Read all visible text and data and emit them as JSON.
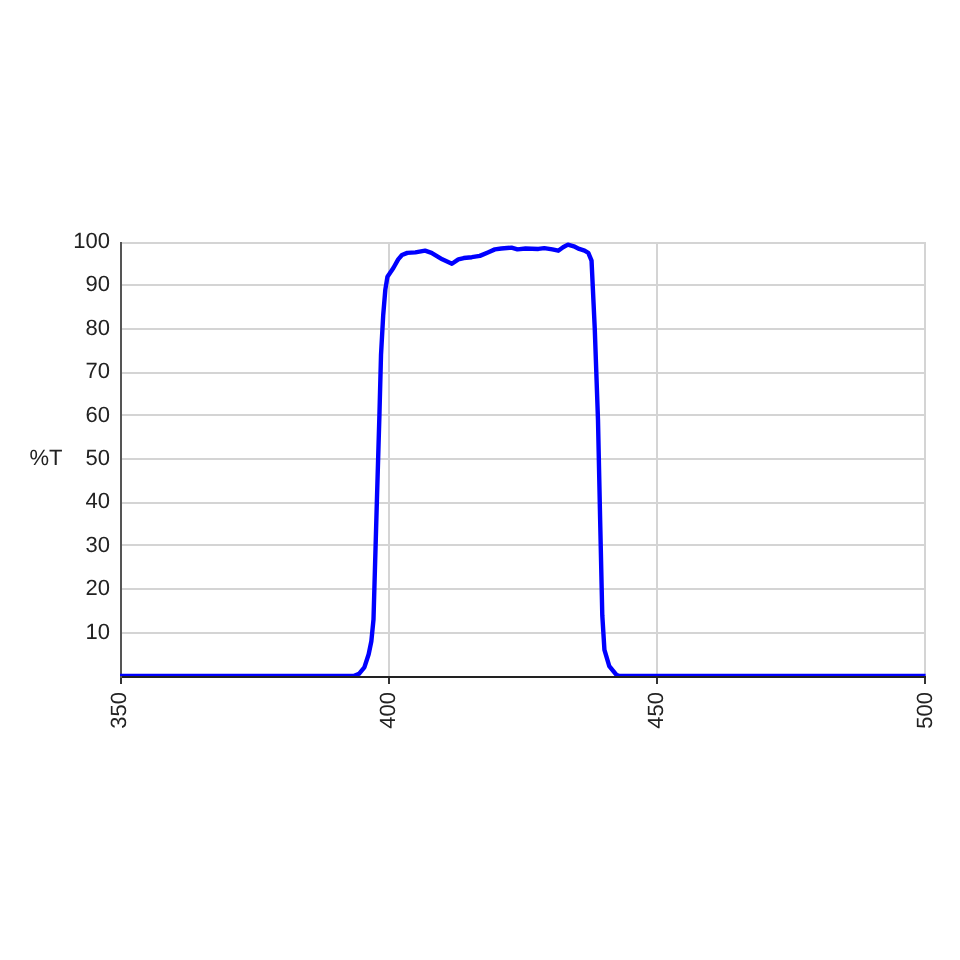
{
  "chart_data": {
    "type": "line",
    "ylabel": "%T",
    "x": [
      350,
      393.5,
      394.5,
      395.5,
      396.3,
      396.8,
      397.2,
      397.8,
      398.3,
      398.6,
      399,
      399.4,
      399.8,
      400.9,
      401.8,
      402.5,
      403.5,
      405,
      406.8,
      408,
      410,
      411.8,
      413,
      414,
      415.5,
      417,
      418.5,
      419.8,
      421,
      422.9,
      424,
      425.5,
      427.9,
      429,
      430.5,
      431.6,
      432.5,
      433.4,
      434.5,
      435.5,
      436.5,
      437.2,
      437.8,
      438.4,
      439,
      439.4,
      439.8,
      440.2,
      441.1,
      442.4,
      443,
      500
    ],
    "series": [
      {
        "color": "#0000ff",
        "values": [
          0,
          0,
          0.5,
          2,
          5,
          8,
          13,
          39,
          60,
          74,
          83,
          89,
          92,
          94,
          96,
          97,
          97.5,
          97.6,
          98,
          97.5,
          96,
          95,
          96,
          96.3,
          96.5,
          96.8,
          97.6,
          98.3,
          98.5,
          98.7,
          98.3,
          98.5,
          98.4,
          98.6,
          98.3,
          98,
          98.8,
          99.4,
          99,
          98.4,
          98,
          97.5,
          95.7,
          80,
          59,
          36,
          14,
          6,
          2.3,
          0.3,
          0,
          0
        ]
      }
    ],
    "xlim": [
      350,
      500
    ],
    "xticks": [
      350,
      400,
      450,
      500
    ],
    "ylim": [
      0,
      100
    ],
    "yticks": [
      {
        "value": 0,
        "label": null
      },
      10,
      20,
      30,
      40,
      50,
      60,
      70,
      80,
      90,
      100
    ],
    "grid": true,
    "legend": false,
    "marker": "none",
    "line_style": "solid"
  }
}
